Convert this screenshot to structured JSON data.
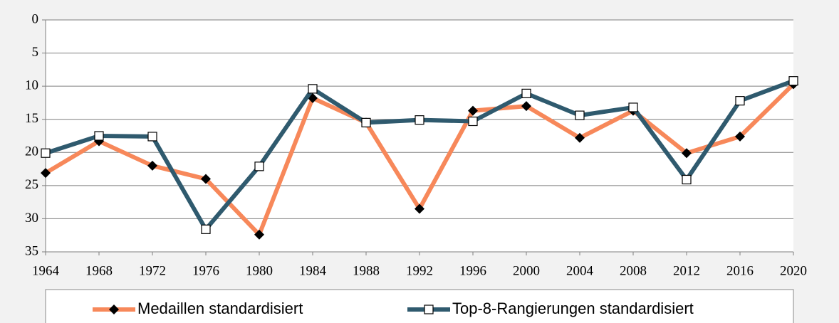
{
  "chart_data": {
    "type": "line",
    "categories": [
      "1964",
      "1968",
      "1972",
      "1976",
      "1980",
      "1984",
      "1988",
      "1992",
      "1996",
      "2000",
      "2004",
      "2008",
      "2012",
      "2016",
      "2020"
    ],
    "series": [
      {
        "name": "Medaillen standardisiert",
        "color": "#f7885a",
        "marker": "diamond",
        "values": [
          23.1,
          18.3,
          22.0,
          24.0,
          32.4,
          11.8,
          15.5,
          28.5,
          13.7,
          13.0,
          17.8,
          13.7,
          20.1,
          17.6,
          9.7
        ]
      },
      {
        "name": "Top-8-Rangierungen standardisiert",
        "color": "#2f5a6e",
        "marker": "square",
        "values": [
          20.1,
          17.5,
          17.6,
          31.6,
          22.1,
          10.4,
          15.5,
          15.1,
          15.3,
          11.1,
          14.4,
          13.2,
          24.1,
          12.2,
          9.2
        ]
      }
    ],
    "ylim": [
      0,
      35
    ],
    "y_inverted": true,
    "yticks": [
      0,
      5,
      10,
      15,
      20,
      25,
      30,
      35
    ],
    "grid": true,
    "legend": "bottom"
  }
}
